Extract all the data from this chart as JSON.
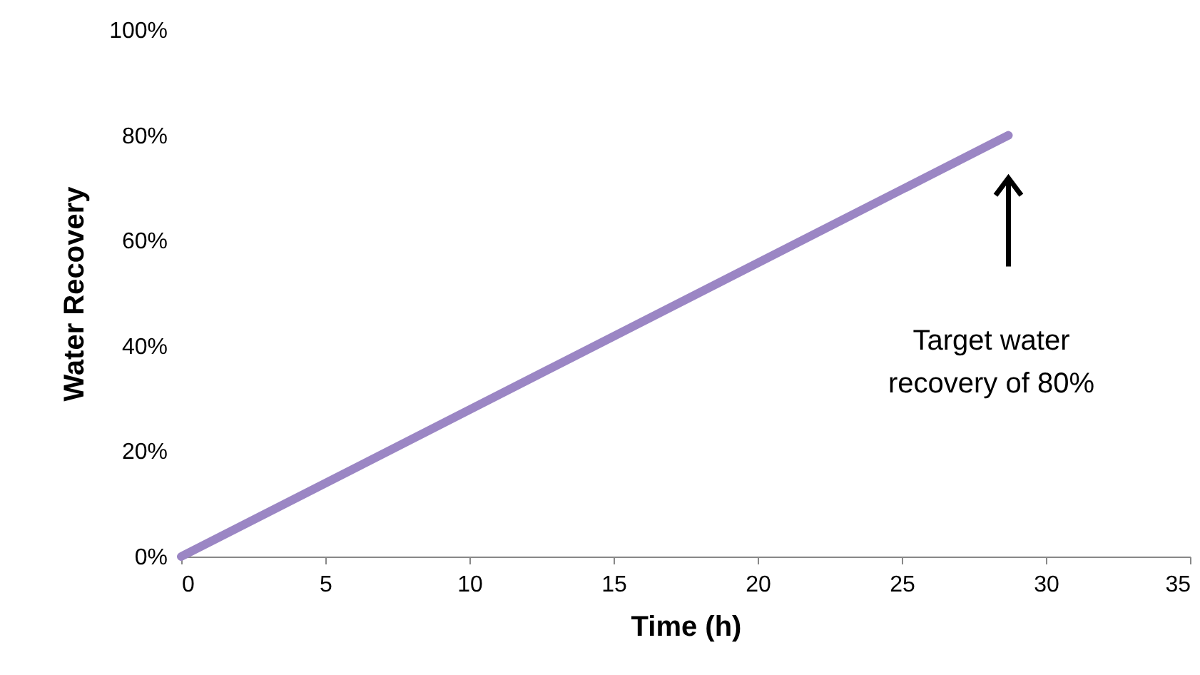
{
  "chart_data": {
    "type": "line",
    "xlabel": "Time (h)",
    "ylabel": "Water Recovery",
    "x": [
      0,
      28.7
    ],
    "series": [
      {
        "color": "#9b86c4",
        "values": [
          0,
          80
        ]
      }
    ],
    "xlim": [
      0,
      35
    ],
    "xticks": [
      0,
      5,
      10,
      15,
      20,
      25,
      30,
      35
    ],
    "ylim": [
      0,
      100
    ],
    "yticks": [
      {
        "value": 0,
        "label": "0%"
      },
      {
        "value": 20,
        "label": "20%"
      },
      {
        "value": 40,
        "label": "40%"
      },
      {
        "value": 60,
        "label": "60%"
      },
      {
        "value": 80,
        "label": "80%"
      },
      {
        "value": 100,
        "label": "100%"
      }
    ],
    "annotations": [
      "Target water\nrecovery of 80%"
    ],
    "grid": false,
    "marker": "none",
    "line_style": "solid"
  }
}
